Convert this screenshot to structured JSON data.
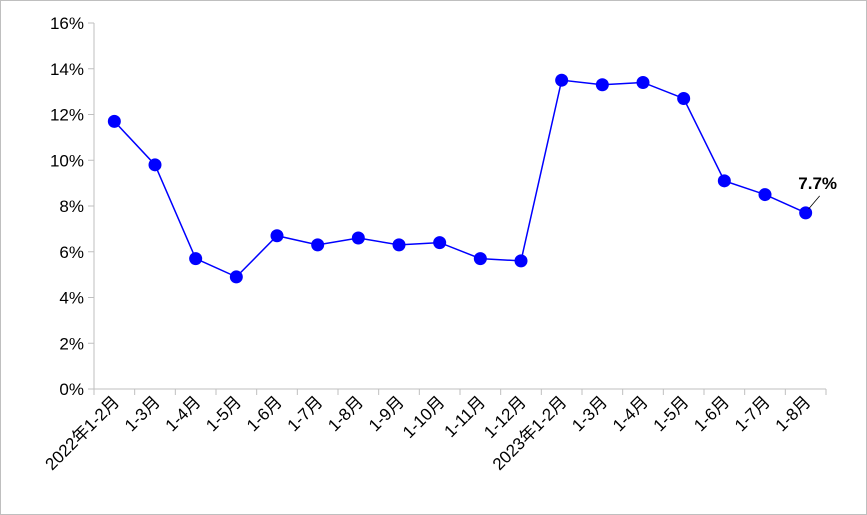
{
  "chart_data": {
    "type": "line",
    "categories": [
      "2022年1-2月",
      "1-3月",
      "1-4月",
      "1-5月",
      "1-6月",
      "1-7月",
      "1-8月",
      "1-9月",
      "1-10月",
      "1-11月",
      "1-12月",
      "2023年1-2月",
      "1-3月",
      "1-4月",
      "1-5月",
      "1-6月",
      "1-7月",
      "1-8月"
    ],
    "values": [
      11.7,
      9.8,
      5.7,
      4.9,
      6.7,
      6.3,
      6.6,
      6.3,
      6.4,
      5.7,
      5.6,
      13.5,
      13.3,
      13.4,
      12.7,
      9.1,
      8.5,
      7.7
    ],
    "value_labels": [
      null,
      null,
      null,
      null,
      null,
      null,
      null,
      null,
      null,
      null,
      null,
      null,
      null,
      null,
      null,
      null,
      null,
      "7.7%"
    ],
    "color": "#0000ff",
    "ylim": [
      0,
      16
    ],
    "yticks": [
      {
        "value": 0,
        "label": "0%"
      },
      {
        "value": 2,
        "label": "2%"
      },
      {
        "value": 4,
        "label": "4%"
      },
      {
        "value": 6,
        "label": "6%"
      },
      {
        "value": 8,
        "label": "8%"
      },
      {
        "value": 10,
        "label": "10%"
      },
      {
        "value": 12,
        "label": "12%"
      },
      {
        "value": 14,
        "label": "14%"
      },
      {
        "value": 16,
        "label": "16%"
      }
    ],
    "grid": false
  }
}
